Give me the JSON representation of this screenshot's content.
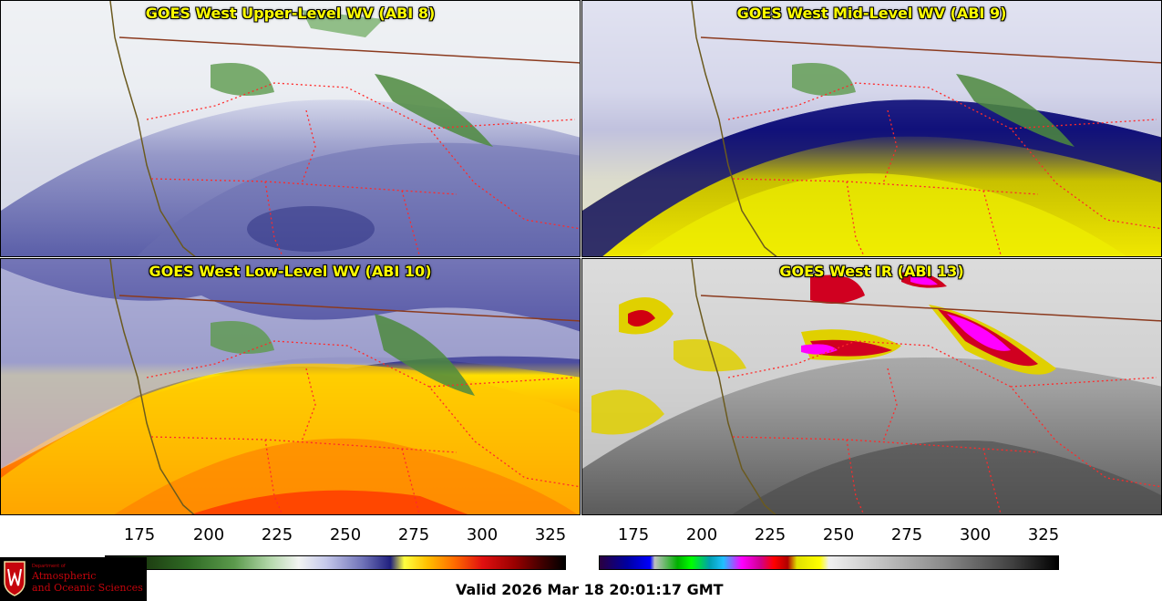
{
  "panels": [
    {
      "title": "GOES West Upper-Level WV (ABI 8)"
    },
    {
      "title": "GOES West Mid-Level WV (ABI 9)"
    },
    {
      "title": "GOES West Low-Level WV (ABI 10)"
    },
    {
      "title": "GOES West IR (ABI 13)"
    }
  ],
  "colorbar_left": {
    "ticks": [
      "175",
      "200",
      "225",
      "250",
      "275",
      "300",
      "325"
    ]
  },
  "colorbar_right": {
    "ticks": [
      "175",
      "200",
      "225",
      "250",
      "275",
      "300",
      "325"
    ]
  },
  "logo": {
    "dept": "Department of",
    "line1": "Atmospheric",
    "line2": "and Oceanic Sciences"
  },
  "valid_time": "Valid 2026 Mar 18 20:01:17 GMT",
  "colors": {
    "title": "#ffff00",
    "state_border": "#ff2a2a",
    "coast": "#6b5a1e",
    "intl_border": "#8b3a1e"
  }
}
